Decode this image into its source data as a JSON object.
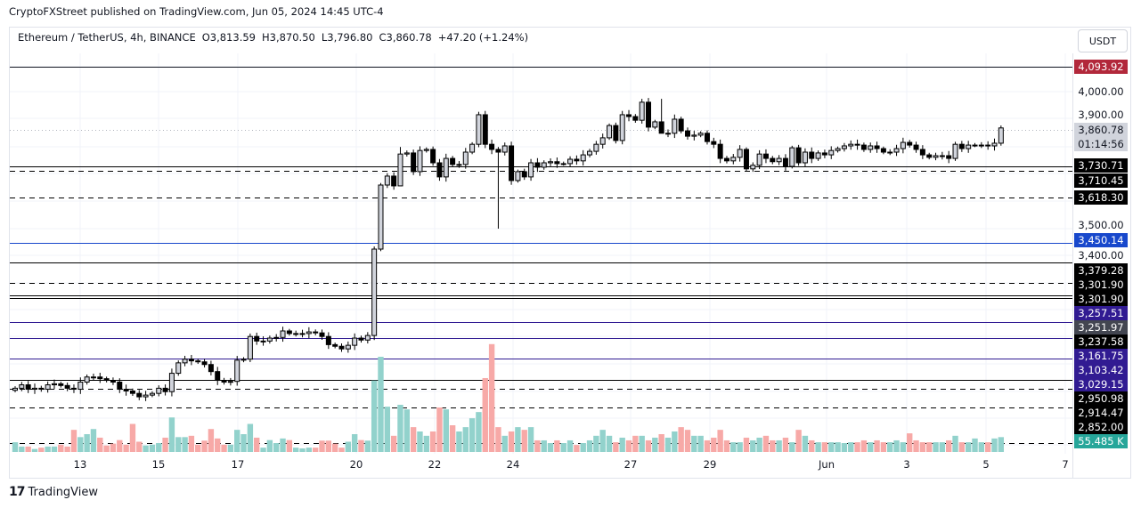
{
  "published": "CryptoFXStreet published on TradingView.com, Jun 05, 2024 14:45 UTC-4",
  "legend": {
    "symbol": "Ethereum / TetherUS, 4h, BINANCE",
    "open": "O3,813.59",
    "high": "H3,870.50",
    "low": "L3,796.80",
    "close": "C3,860.78",
    "change": "+47.20 (+1.24%)"
  },
  "currency_button": "USDT",
  "brand": "TradingView",
  "brand_mark": "17",
  "price_ticks": [
    "4,000.00",
    "3,900.00",
    "3,500.00",
    "3,400.00"
  ],
  "price_labels": [
    {
      "text": "4,093.92",
      "color": "#b2283b"
    },
    {
      "text": "3,860.78",
      "color": "#d1d4dc"
    },
    {
      "text": "01:14:56",
      "color": "#d1d4dc"
    },
    {
      "text": "3,730.71",
      "color": "#000000"
    },
    {
      "text": "3,710.45",
      "color": "#000000"
    },
    {
      "text": "3,618.30",
      "color": "#000000"
    },
    {
      "text": "3,450.14",
      "color": "#1848cc"
    },
    {
      "text": "3,379.28",
      "color": "#000000"
    },
    {
      "text": "3,301.90",
      "color": "#000000"
    },
    {
      "text": "3,301.90",
      "color": "#000000"
    },
    {
      "text": "3,257.51",
      "color": "#311b92"
    },
    {
      "text": "3,251.97",
      "color": "#434651"
    },
    {
      "text": "3,237.58",
      "color": "#000000"
    },
    {
      "text": "3,161.75",
      "color": "#311b92"
    },
    {
      "text": "3,103.42",
      "color": "#311b92"
    },
    {
      "text": "3,029.15",
      "color": "#311b92"
    },
    {
      "text": "2,950.98",
      "color": "#000000"
    },
    {
      "text": "2,914.47",
      "color": "#000000"
    },
    {
      "text": "2,852.00",
      "color": "#000000"
    },
    {
      "text": "55.485 K",
      "color": "#26a69a"
    }
  ],
  "x_labels": [
    "13",
    "15",
    "17",
    "20",
    "22",
    "24",
    "27",
    "29",
    "Jun",
    "3",
    "5",
    "7"
  ],
  "chart_data": {
    "type": "candlestick",
    "title": "Ethereum / TetherUS, 4h, BINANCE",
    "scale": "log",
    "ylim": [
      2830,
      4110
    ],
    "first_open": 2990,
    "close": [
      2996,
      3006,
      2993,
      2996,
      2993,
      3006,
      3009,
      3004,
      2996,
      2993,
      3014,
      3029,
      3029,
      3024,
      3019,
      3014,
      2993,
      2988,
      2981,
      2971,
      2976,
      2981,
      2996,
      2986,
      3040,
      3071,
      3082,
      3077,
      3074,
      3066,
      3045,
      3019,
      3014,
      3016,
      3079,
      3082,
      3151,
      3137,
      3137,
      3146,
      3148,
      3168,
      3160,
      3160,
      3160,
      3165,
      3162,
      3151,
      3126,
      3121,
      3113,
      3124,
      3146,
      3140,
      3154,
      3431,
      3652,
      3684,
      3649,
      3764,
      3768,
      3700,
      3777,
      3781,
      3732,
      3681,
      3748,
      3726,
      3726,
      3771,
      3800,
      3911,
      3800,
      3781,
      3771,
      3794,
      3668,
      3700,
      3681,
      3732,
      3716,
      3732,
      3736,
      3729,
      3729,
      3745,
      3739,
      3761,
      3774,
      3800,
      3824,
      3870,
      3814,
      3911,
      3904,
      3890,
      3959,
      3864,
      3884,
      3841,
      3841,
      3894,
      3850,
      3830,
      3834,
      3841,
      3810,
      3800,
      3748,
      3739,
      3752,
      3781,
      3710,
      3723,
      3764,
      3748,
      3736,
      3748,
      3719,
      3787,
      3732,
      3771,
      3748,
      3768,
      3761,
      3777,
      3784,
      3794,
      3800,
      3797,
      3781,
      3794,
      3784,
      3771,
      3771,
      3784,
      3807,
      3797,
      3781,
      3761,
      3752,
      3758,
      3758,
      3748,
      3800,
      3784,
      3797,
      3797,
      3797,
      3794,
      3804,
      3861
    ],
    "wick_overrides": {
      "55": [
        3440,
        3140
      ],
      "74": [
        3790,
        3500
      ],
      "59": [
        3790,
        3700
      ],
      "99": [
        3972,
        3850
      ]
    },
    "volume_k": [
      36,
      20,
      20,
      11,
      16,
      20,
      20,
      27,
      20,
      82,
      55,
      66,
      85,
      53,
      24,
      31,
      44,
      27,
      104,
      38,
      24,
      27,
      33,
      53,
      128,
      55,
      55,
      60,
      27,
      42,
      85,
      50,
      27,
      27,
      82,
      66,
      104,
      53,
      16,
      44,
      33,
      50,
      44,
      16,
      13,
      16,
      16,
      42,
      42,
      31,
      16,
      38,
      66,
      44,
      42,
      265,
      353,
      168,
      60,
      175,
      158,
      92,
      76,
      60,
      76,
      165,
      158,
      99,
      76,
      92,
      125,
      148,
      274,
      400,
      92,
      60,
      76,
      92,
      82,
      92,
      43,
      43,
      33,
      43,
      33,
      43,
      26,
      33,
      43,
      60,
      82,
      60,
      36,
      53,
      43,
      60,
      60,
      43,
      53,
      66,
      53,
      76,
      92,
      82,
      60,
      60,
      43,
      53,
      82,
      43,
      36,
      36,
      53,
      43,
      53,
      60,
      43,
      43,
      53,
      36,
      82,
      60,
      43,
      36,
      36,
      36,
      36,
      33,
      36,
      36,
      43,
      36,
      43,
      36,
      36,
      43,
      36,
      69,
      43,
      36,
      36,
      36,
      36,
      43,
      60,
      36,
      36,
      50,
      36,
      36,
      50,
      55
    ],
    "horizontal_levels": [
      4093.92,
      3730.71,
      3710.45,
      3618.3,
      3450.14,
      3379.28,
      3301.9,
      3301.9,
      3257.51,
      3251.97,
      3237.58,
      3161.75,
      3103.42,
      3029.15,
      2950.98,
      2914.47,
      2852.0
    ],
    "colors": {
      "up_body": "#d1d4dc",
      "down_body": "#000000",
      "vol_up": "#92d2cc",
      "vol_down": "#f7a9a7"
    }
  }
}
